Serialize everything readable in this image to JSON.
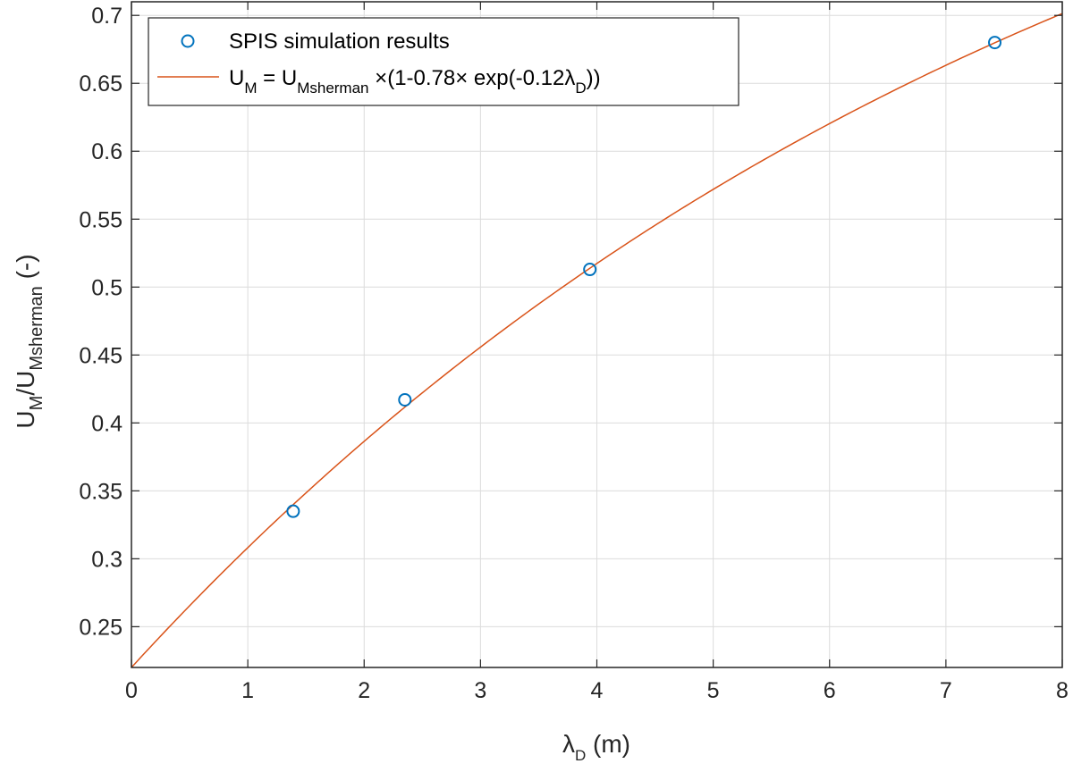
{
  "chart_data": {
    "type": "scatter",
    "xlabel": {
      "main": "λ",
      "sub": "D",
      "suffix": " (m)"
    },
    "ylabel": {
      "u1": "U",
      "s1": "M",
      "slash": "/U",
      "s2": "Msherman",
      "suffix": " (-)"
    },
    "xlim": [
      0,
      8
    ],
    "ylim": [
      0.22,
      0.71
    ],
    "xticks": [
      0,
      1,
      2,
      3,
      4,
      5,
      6,
      7,
      8
    ],
    "xtick_labels": [
      "0",
      "1",
      "2",
      "3",
      "4",
      "5",
      "6",
      "7",
      "8"
    ],
    "yticks": [
      0.25,
      0.3,
      0.35,
      0.4,
      0.45,
      0.5,
      0.55,
      0.6,
      0.65,
      0.7
    ],
    "ytick_labels": [
      "0.25",
      "0.3",
      "0.35",
      "0.4",
      "0.45",
      "0.5",
      "0.55",
      "0.6",
      "0.65",
      "0.7"
    ],
    "grid": true,
    "legend_position": "top-left",
    "series": [
      {
        "name": "SPIS simulation results",
        "kind": "scatter",
        "marker": "circle",
        "color": "#0072BD",
        "x": [
          1.39,
          2.35,
          3.94,
          7.42
        ],
        "y": [
          0.335,
          0.417,
          0.513,
          0.68
        ]
      },
      {
        "kind": "line",
        "color": "#D95319",
        "fit": {
          "A": 1.0,
          "B": 0.78,
          "k": 0.12
        },
        "x_range": [
          0,
          8
        ]
      }
    ],
    "legend": {
      "entry1": "SPIS simulation results",
      "entry2": {
        "p1": "U",
        "p1_sub": "M",
        "p2": " = U",
        "p2_sub": "Msherman",
        "p3": " ×(1-0.78× exp(-0.12λ",
        "p3_sub": "D",
        "p4": "))"
      }
    }
  }
}
